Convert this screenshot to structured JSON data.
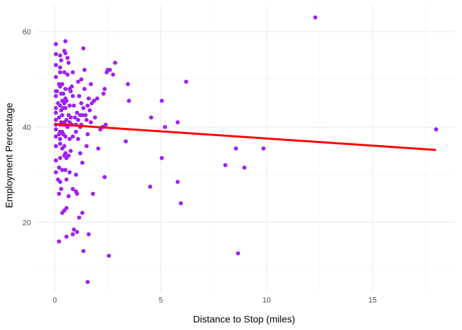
{
  "chart_data": {
    "type": "scatter",
    "title": "",
    "xlabel": "Distance to Stop (miles)",
    "ylabel": "Employment Percentage",
    "xlim": [
      -0.9,
      18.9
    ],
    "ylim": [
      5.5,
      65.5
    ],
    "x_ticks": [
      0,
      5,
      10,
      15
    ],
    "y_ticks": [
      20,
      40,
      60
    ],
    "grid": true,
    "legend": "none",
    "point_color": "#a020f0",
    "fit_color": "#ff0000",
    "points": [
      [
        0.05,
        57.4
      ],
      [
        0.05,
        55.3
      ],
      [
        0.05,
        53.0
      ],
      [
        0.05,
        50.5
      ],
      [
        0.05,
        47.5
      ],
      [
        0.05,
        46.5
      ],
      [
        0.05,
        44.0
      ],
      [
        0.05,
        43.0
      ],
      [
        0.05,
        41.5
      ],
      [
        0.05,
        40.5
      ],
      [
        0.05,
        39.5
      ],
      [
        0.05,
        38.0
      ],
      [
        0.05,
        36.0
      ],
      [
        0.05,
        33.0
      ],
      [
        0.05,
        30.5
      ],
      [
        0.1,
        47.5
      ],
      [
        0.15,
        45.0
      ],
      [
        0.15,
        29.0
      ],
      [
        0.2,
        49.0
      ],
      [
        0.2,
        42.0
      ],
      [
        0.2,
        38.5
      ],
      [
        0.2,
        31.5
      ],
      [
        0.2,
        26.0
      ],
      [
        0.2,
        16.0
      ],
      [
        0.25,
        55.0
      ],
      [
        0.25,
        52.5
      ],
      [
        0.25,
        51.5
      ],
      [
        0.25,
        48.5
      ],
      [
        0.25,
        44.5
      ],
      [
        0.25,
        40.5
      ],
      [
        0.25,
        39.0
      ],
      [
        0.25,
        37.5
      ],
      [
        0.25,
        36.5
      ],
      [
        0.25,
        33.5
      ],
      [
        0.25,
        28.5
      ],
      [
        0.3,
        54.0
      ],
      [
        0.3,
        47.0
      ],
      [
        0.3,
        43.5
      ],
      [
        0.3,
        41.0
      ],
      [
        0.3,
        27.0
      ],
      [
        0.35,
        49.0
      ],
      [
        0.35,
        45.5
      ],
      [
        0.35,
        42.5
      ],
      [
        0.35,
        39.0
      ],
      [
        0.35,
        35.5
      ],
      [
        0.35,
        31.0
      ],
      [
        0.35,
        22.0
      ],
      [
        0.4,
        47.0
      ],
      [
        0.4,
        44.0
      ],
      [
        0.4,
        40.5
      ],
      [
        0.4,
        38.5
      ],
      [
        0.45,
        56.0
      ],
      [
        0.45,
        51.5
      ],
      [
        0.45,
        45.0
      ],
      [
        0.45,
        41.0
      ],
      [
        0.45,
        36.0
      ],
      [
        0.45,
        34.0
      ],
      [
        0.45,
        22.5
      ],
      [
        0.5,
        58.0
      ],
      [
        0.5,
        55.5
      ],
      [
        0.5,
        48.0
      ],
      [
        0.5,
        46.0
      ],
      [
        0.5,
        44.0
      ],
      [
        0.5,
        40.5
      ],
      [
        0.5,
        38.0
      ],
      [
        0.5,
        34.5
      ],
      [
        0.5,
        31.0
      ],
      [
        0.55,
        45.5
      ],
      [
        0.55,
        41.5
      ],
      [
        0.55,
        33.5
      ],
      [
        0.55,
        29.0
      ],
      [
        0.55,
        23.0
      ],
      [
        0.55,
        17.0
      ],
      [
        0.6,
        54.5
      ],
      [
        0.6,
        51.0
      ],
      [
        0.6,
        40.0
      ],
      [
        0.65,
        53.5
      ],
      [
        0.65,
        42.5
      ],
      [
        0.65,
        34.0
      ],
      [
        0.65,
        25.5
      ],
      [
        0.7,
        48.0
      ],
      [
        0.7,
        44.5
      ],
      [
        0.7,
        41.0
      ],
      [
        0.7,
        37.5
      ],
      [
        0.7,
        30.5
      ],
      [
        0.75,
        47.5
      ],
      [
        0.75,
        42.0
      ],
      [
        0.75,
        35.0
      ],
      [
        0.8,
        48.5
      ],
      [
        0.8,
        40.5
      ],
      [
        0.85,
        51.5
      ],
      [
        0.85,
        46.5
      ],
      [
        0.85,
        38.0
      ],
      [
        0.85,
        27.0
      ],
      [
        0.85,
        17.5
      ],
      [
        0.9,
        44.5
      ],
      [
        0.9,
        18.5
      ],
      [
        0.95,
        42.0
      ],
      [
        1.0,
        40.5
      ],
      [
        1.0,
        39.0
      ],
      [
        1.0,
        30.0
      ],
      [
        1.0,
        26.5
      ],
      [
        1.05,
        43.0
      ],
      [
        1.05,
        26.0
      ],
      [
        1.05,
        18.0
      ],
      [
        1.1,
        49.5
      ],
      [
        1.1,
        41.5
      ],
      [
        1.1,
        37.5
      ],
      [
        1.15,
        46.5
      ],
      [
        1.15,
        21.0
      ],
      [
        1.2,
        42.5
      ],
      [
        1.2,
        40.0
      ],
      [
        1.2,
        34.5
      ],
      [
        1.25,
        50.0
      ],
      [
        1.25,
        45.0
      ],
      [
        1.25,
        40.5
      ],
      [
        1.3,
        42.5
      ],
      [
        1.3,
        32.5
      ],
      [
        1.3,
        22.0
      ],
      [
        1.35,
        56.5
      ],
      [
        1.35,
        44.0
      ],
      [
        1.35,
        14.0
      ],
      [
        1.4,
        48.0
      ],
      [
        1.4,
        52.0
      ],
      [
        1.45,
        42.5
      ],
      [
        1.5,
        41.5
      ],
      [
        1.5,
        36.0
      ],
      [
        1.55,
        44.5
      ],
      [
        1.55,
        38.5
      ],
      [
        1.55,
        7.5
      ],
      [
        1.6,
        46.0
      ],
      [
        1.6,
        17.5
      ],
      [
        1.65,
        43.5
      ],
      [
        1.7,
        41.0
      ],
      [
        1.7,
        49.0
      ],
      [
        1.75,
        45.0
      ],
      [
        1.8,
        26.0
      ],
      [
        1.85,
        45.5
      ],
      [
        1.9,
        42.0
      ],
      [
        2.0,
        46.0
      ],
      [
        2.05,
        35.5
      ],
      [
        2.15,
        39.5
      ],
      [
        2.25,
        40.0
      ],
      [
        2.3,
        47.0
      ],
      [
        2.35,
        48.0
      ],
      [
        2.35,
        29.5
      ],
      [
        2.4,
        40.5
      ],
      [
        2.45,
        51.5
      ],
      [
        2.5,
        52.0
      ],
      [
        2.55,
        13.0
      ],
      [
        2.6,
        52.0
      ],
      [
        2.75,
        51.0
      ],
      [
        2.85,
        53.5
      ],
      [
        3.35,
        37.0
      ],
      [
        3.45,
        49.0
      ],
      [
        3.5,
        45.5
      ],
      [
        4.5,
        27.5
      ],
      [
        4.55,
        42.0
      ],
      [
        5.05,
        45.5
      ],
      [
        5.05,
        33.5
      ],
      [
        5.2,
        40.0
      ],
      [
        5.8,
        41.0
      ],
      [
        5.8,
        28.5
      ],
      [
        5.95,
        24.0
      ],
      [
        6.2,
        49.5
      ],
      [
        8.05,
        32.0
      ],
      [
        8.55,
        35.5
      ],
      [
        8.65,
        13.5
      ],
      [
        8.95,
        31.5
      ],
      [
        9.85,
        35.5
      ],
      [
        12.3,
        63.0
      ],
      [
        18.0,
        39.5
      ]
    ],
    "fit_line": {
      "x": [
        0.0,
        18.0
      ],
      "y": [
        40.6,
        35.2
      ]
    }
  }
}
